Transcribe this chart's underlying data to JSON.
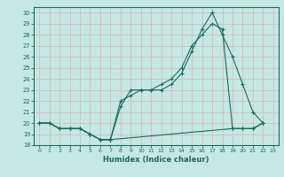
{
  "line1_x": [
    0,
    1,
    2,
    3,
    4,
    5,
    6,
    7,
    8,
    9,
    10,
    11,
    12,
    13,
    14,
    15,
    16,
    17,
    18,
    19,
    20,
    21,
    22
  ],
  "line1_y": [
    20.0,
    20.0,
    19.5,
    19.5,
    19.5,
    19.0,
    18.5,
    18.5,
    21.5,
    23.0,
    23.0,
    23.0,
    23.0,
    23.5,
    24.5,
    26.5,
    28.5,
    30.0,
    28.0,
    26.0,
    23.5,
    21.0,
    20.0
  ],
  "line2_x": [
    0,
    1,
    2,
    3,
    4,
    5,
    6,
    7,
    8,
    9,
    10,
    11,
    12,
    13,
    14,
    15,
    16,
    17,
    18,
    19,
    20,
    21,
    22
  ],
  "line2_y": [
    20.0,
    20.0,
    19.5,
    19.5,
    19.5,
    19.0,
    18.5,
    18.5,
    22.0,
    22.5,
    23.0,
    23.0,
    23.5,
    24.0,
    25.0,
    27.0,
    28.0,
    29.0,
    28.5,
    19.5,
    19.5,
    19.5,
    20.0
  ],
  "line3_x": [
    0,
    1,
    2,
    3,
    4,
    5,
    6,
    7,
    19,
    20,
    21,
    22
  ],
  "line3_y": [
    20.0,
    20.0,
    19.5,
    19.5,
    19.5,
    19.0,
    18.5,
    18.5,
    19.5,
    19.5,
    19.5,
    20.0
  ],
  "color": "#1a6b5a",
  "bg_color": "#c5e8e2",
  "grid_color": "#d4b8b8",
  "xlabel": "Humidex (Indice chaleur)",
  "xlim": [
    -0.5,
    23.5
  ],
  "ylim": [
    18,
    30.5
  ],
  "yticks": [
    18,
    19,
    20,
    21,
    22,
    23,
    24,
    25,
    26,
    27,
    28,
    29,
    30
  ],
  "xticks": [
    0,
    1,
    2,
    3,
    4,
    5,
    6,
    7,
    8,
    9,
    10,
    11,
    12,
    13,
    14,
    15,
    16,
    17,
    18,
    19,
    20,
    21,
    22,
    23
  ]
}
